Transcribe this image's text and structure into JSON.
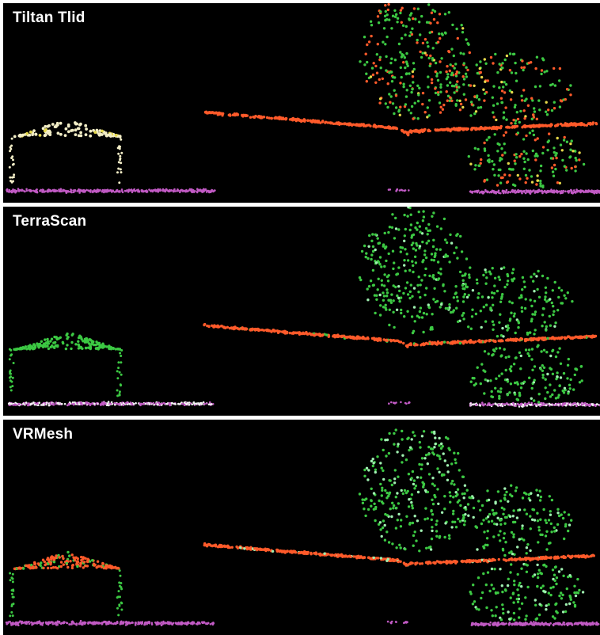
{
  "panels": [
    {
      "title": "Tiltan Tlid",
      "building_roof_color": "#f2edc6",
      "road_color": "#ff5a2a",
      "vegetation_color": "#3cc843"
    },
    {
      "title": "TerraScan",
      "building_roof_color": "#3cc843",
      "road_color": "#ff5a2a",
      "vegetation_color": "#3cc843"
    },
    {
      "title": "VRMesh",
      "building_roof_color": "#ff5a2a",
      "road_color": "#ff5a2a",
      "vegetation_color": "#3cc843"
    }
  ],
  "colors": {
    "background": "#000000",
    "ground": "#c15ac4",
    "ground_white": "#f4f4f4",
    "red": "#ff5a2a",
    "green": "#3cc843",
    "light_green": "#9ff0b0",
    "cream": "#f2edc6",
    "yellow": "#e5d84a"
  }
}
